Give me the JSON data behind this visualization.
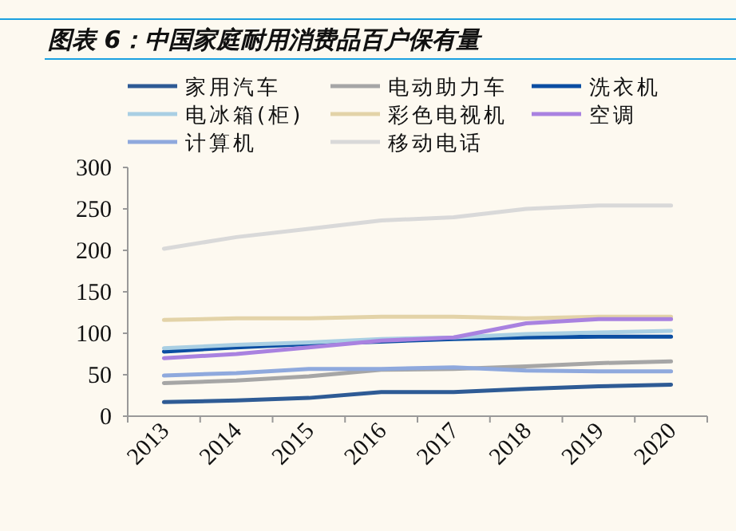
{
  "chart_data": {
    "type": "line",
    "title": "图表 6：中国家庭耐用消费品百户保有量",
    "categories": [
      "2013",
      "2014",
      "2015",
      "2016",
      "2017",
      "2018",
      "2019",
      "2020"
    ],
    "series": [
      {
        "name": "家用汽车",
        "color": "#2e5b95",
        "values": [
          17,
          19,
          22,
          29,
          29,
          33,
          36,
          38
        ]
      },
      {
        "name": "电动助力车",
        "color": "#a6a6a6",
        "values": [
          40,
          43,
          48,
          56,
          57,
          60,
          64,
          66
        ]
      },
      {
        "name": "洗衣机",
        "color": "#0b4ea2",
        "values": [
          78,
          83,
          87,
          90,
          93,
          95,
          96,
          96
        ]
      },
      {
        "name": "电冰箱(柜)",
        "color": "#a9cfe3",
        "values": [
          82,
          86,
          89,
          93,
          95,
          99,
          101,
          103
        ]
      },
      {
        "name": "彩色电视机",
        "color": "#e3d3a8",
        "values": [
          116,
          118,
          118,
          120,
          120,
          118,
          120,
          120
        ]
      },
      {
        "name": "空调",
        "color": "#a982e0",
        "values": [
          70,
          75,
          83,
          91,
          95,
          112,
          117,
          117
        ]
      },
      {
        "name": "计算机",
        "color": "#8fa9dd",
        "values": [
          49,
          52,
          57,
          57,
          59,
          55,
          54,
          54
        ]
      },
      {
        "name": "移动电话",
        "color": "#d9d9d9",
        "values": [
          202,
          216,
          226,
          236,
          240,
          250,
          254,
          254
        ]
      }
    ],
    "ylim": [
      0,
      300
    ],
    "yticks": [
      0,
      50,
      100,
      150,
      200,
      250,
      300
    ],
    "grid": false,
    "legend": "top",
    "marker": "none",
    "line_style": "solid"
  }
}
